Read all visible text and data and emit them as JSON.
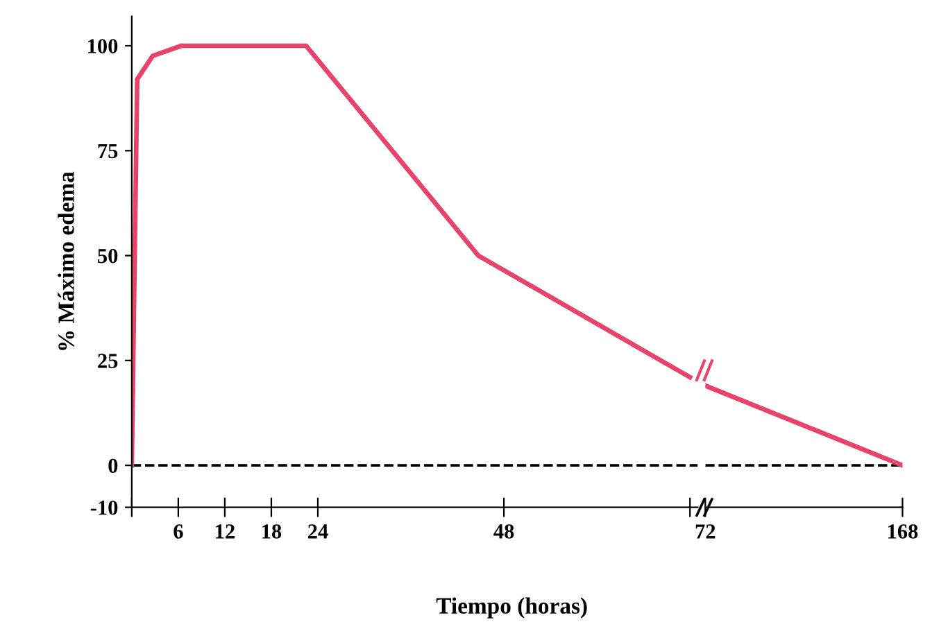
{
  "chart_data": [
    {
      "type": "line",
      "ylabel": "% Máximo edema",
      "xlabel": "Tiempo (horas)",
      "series": [
        {
          "color": "#e8436a",
          "x": [
            0,
            0.7,
            2.7,
            6.4,
            22.5,
            44.7,
            72
          ],
          "values": [
            0,
            92,
            97.6,
            100,
            100,
            50,
            21
          ]
        }
      ],
      "xlim": [
        0,
        73
      ],
      "xticks": [
        {
          "value": 0,
          "label": null
        },
        6,
        12,
        18,
        24,
        48,
        {
          "value": 72,
          "label": null
        }
      ],
      "ylim": [
        -10,
        107
      ],
      "yticks": [
        -10,
        0,
        25,
        50,
        75,
        100
      ],
      "ref_lines": [
        {
          "axis": "y",
          "value": 0,
          "color": "#000000",
          "line_style": "dashed"
        }
      ],
      "grid": false,
      "marker": "none",
      "line_style": "solid"
    },
    {
      "type": "line",
      "series": [
        {
          "color": "#e8436a",
          "x": [
            72,
            168
          ],
          "values": [
            19,
            0
          ]
        }
      ],
      "xlim": [
        72,
        168
      ],
      "xticks": [
        72,
        168
      ],
      "ylim": [
        -10,
        100
      ],
      "yticks": [
        -10,
        0,
        25,
        50,
        75,
        100
      ],
      "tick_labels": "x",
      "ref_lines": [
        {
          "axis": "y",
          "value": 0,
          "color": "#000000",
          "line_style": "dashed"
        }
      ],
      "grid": false,
      "marker": "none",
      "line_style": "solid"
    }
  ]
}
